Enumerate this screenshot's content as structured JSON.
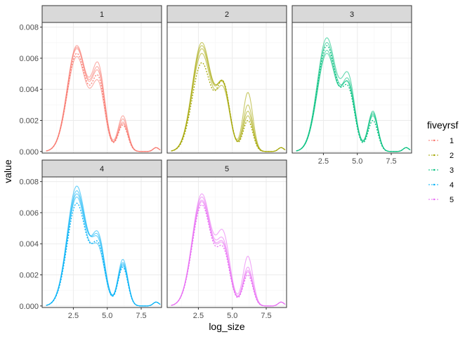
{
  "chart_data": {
    "type": "line",
    "facet_labels": [
      "1",
      "2",
      "3",
      "4",
      "5"
    ],
    "xlabel": "log_size",
    "ylabel": "value",
    "x_ticks": [
      2.5,
      5.0,
      7.5
    ],
    "x_tick_labels": [
      "2.5",
      "5.0",
      "7.5"
    ],
    "y_ticks": [
      0,
      0.002,
      0.004,
      0.006,
      0.008
    ],
    "y_tick_labels": [
      "0.000",
      "0.002",
      "0.004",
      "0.006",
      "0.008"
    ],
    "xlim": [
      0.2,
      9.0
    ],
    "ylim": [
      -0.0001,
      0.0083
    ],
    "legend_title": "fiveyrsf",
    "legend_entries": [
      "1",
      "2",
      "3",
      "4",
      "5"
    ],
    "legend_position": "right",
    "grid": true,
    "colors": [
      "#F8766D",
      "#A3A500",
      "#00BF7D",
      "#00B0F6",
      "#E76BF3"
    ],
    "panels": [
      {
        "facet": "1",
        "peaks": [
          {
            "curve": 1,
            "peak1": 0.0066,
            "peak2": 0.0047,
            "peak3": 0.0019
          },
          {
            "curve": 2,
            "peak1": 0.0068,
            "peak2": 0.0052,
            "peak3": 0.0023
          },
          {
            "curve": 3,
            "peak1": 0.0063,
            "peak2": 0.0044,
            "peak3": 0.0017
          },
          {
            "curve": 4,
            "peak1": 0.0061,
            "peak2": 0.0041,
            "peak3": 0.0021
          },
          {
            "curve": 5,
            "peak1": 0.0067,
            "peak2": 0.0049,
            "peak3": 0.0018
          }
        ]
      },
      {
        "facet": "2",
        "peaks": [
          {
            "curve": 1,
            "peak1": 0.0066,
            "peak2": 0.004,
            "peak3": 0.0026
          },
          {
            "curve": 2,
            "peak1": 0.007,
            "peak2": 0.0039,
            "peak3": 0.0038
          },
          {
            "curve": 3,
            "peak1": 0.0057,
            "peak2": 0.0041,
            "peak3": 0.002
          },
          {
            "curve": 4,
            "peak1": 0.0063,
            "peak2": 0.0037,
            "peak3": 0.003
          },
          {
            "curve": 5,
            "peak1": 0.0068,
            "peak2": 0.004,
            "peak3": 0.0023
          }
        ]
      },
      {
        "facet": "3",
        "peaks": [
          {
            "curve": 1,
            "peak1": 0.0065,
            "peak2": 0.004,
            "peak3": 0.0024
          },
          {
            "curve": 2,
            "peak1": 0.0073,
            "peak2": 0.0045,
            "peak3": 0.0026
          },
          {
            "curve": 3,
            "peak1": 0.0068,
            "peak2": 0.0037,
            "peak3": 0.002
          },
          {
            "curve": 4,
            "peak1": 0.0063,
            "peak2": 0.0042,
            "peak3": 0.0023
          },
          {
            "curve": 5,
            "peak1": 0.007,
            "peak2": 0.0039,
            "peak3": 0.0025
          }
        ]
      },
      {
        "facet": "4",
        "peaks": [
          {
            "curve": 1,
            "peak1": 0.0072,
            "peak2": 0.0042,
            "peak3": 0.0027
          },
          {
            "curve": 2,
            "peak1": 0.0077,
            "peak2": 0.0038,
            "peak3": 0.003
          },
          {
            "curve": 3,
            "peak1": 0.0066,
            "peak2": 0.0036,
            "peak3": 0.0025
          },
          {
            "curve": 4,
            "peak1": 0.007,
            "peak2": 0.0034,
            "peak3": 0.0028
          },
          {
            "curve": 5,
            "peak1": 0.0074,
            "peak2": 0.004,
            "peak3": 0.0026
          }
        ]
      },
      {
        "facet": "5",
        "peaks": [
          {
            "curve": 1,
            "peak1": 0.0068,
            "peak2": 0.0036,
            "peak3": 0.0022
          },
          {
            "curve": 2,
            "peak1": 0.0072,
            "peak2": 0.0043,
            "peak3": 0.0032
          },
          {
            "curve": 3,
            "peak1": 0.0065,
            "peak2": 0.0033,
            "peak3": 0.002
          },
          {
            "curve": 4,
            "peak1": 0.007,
            "peak2": 0.0038,
            "peak3": 0.0025
          },
          {
            "curve": 5,
            "peak1": 0.0067,
            "peak2": 0.0035,
            "peak3": 0.0023
          }
        ]
      }
    ]
  }
}
